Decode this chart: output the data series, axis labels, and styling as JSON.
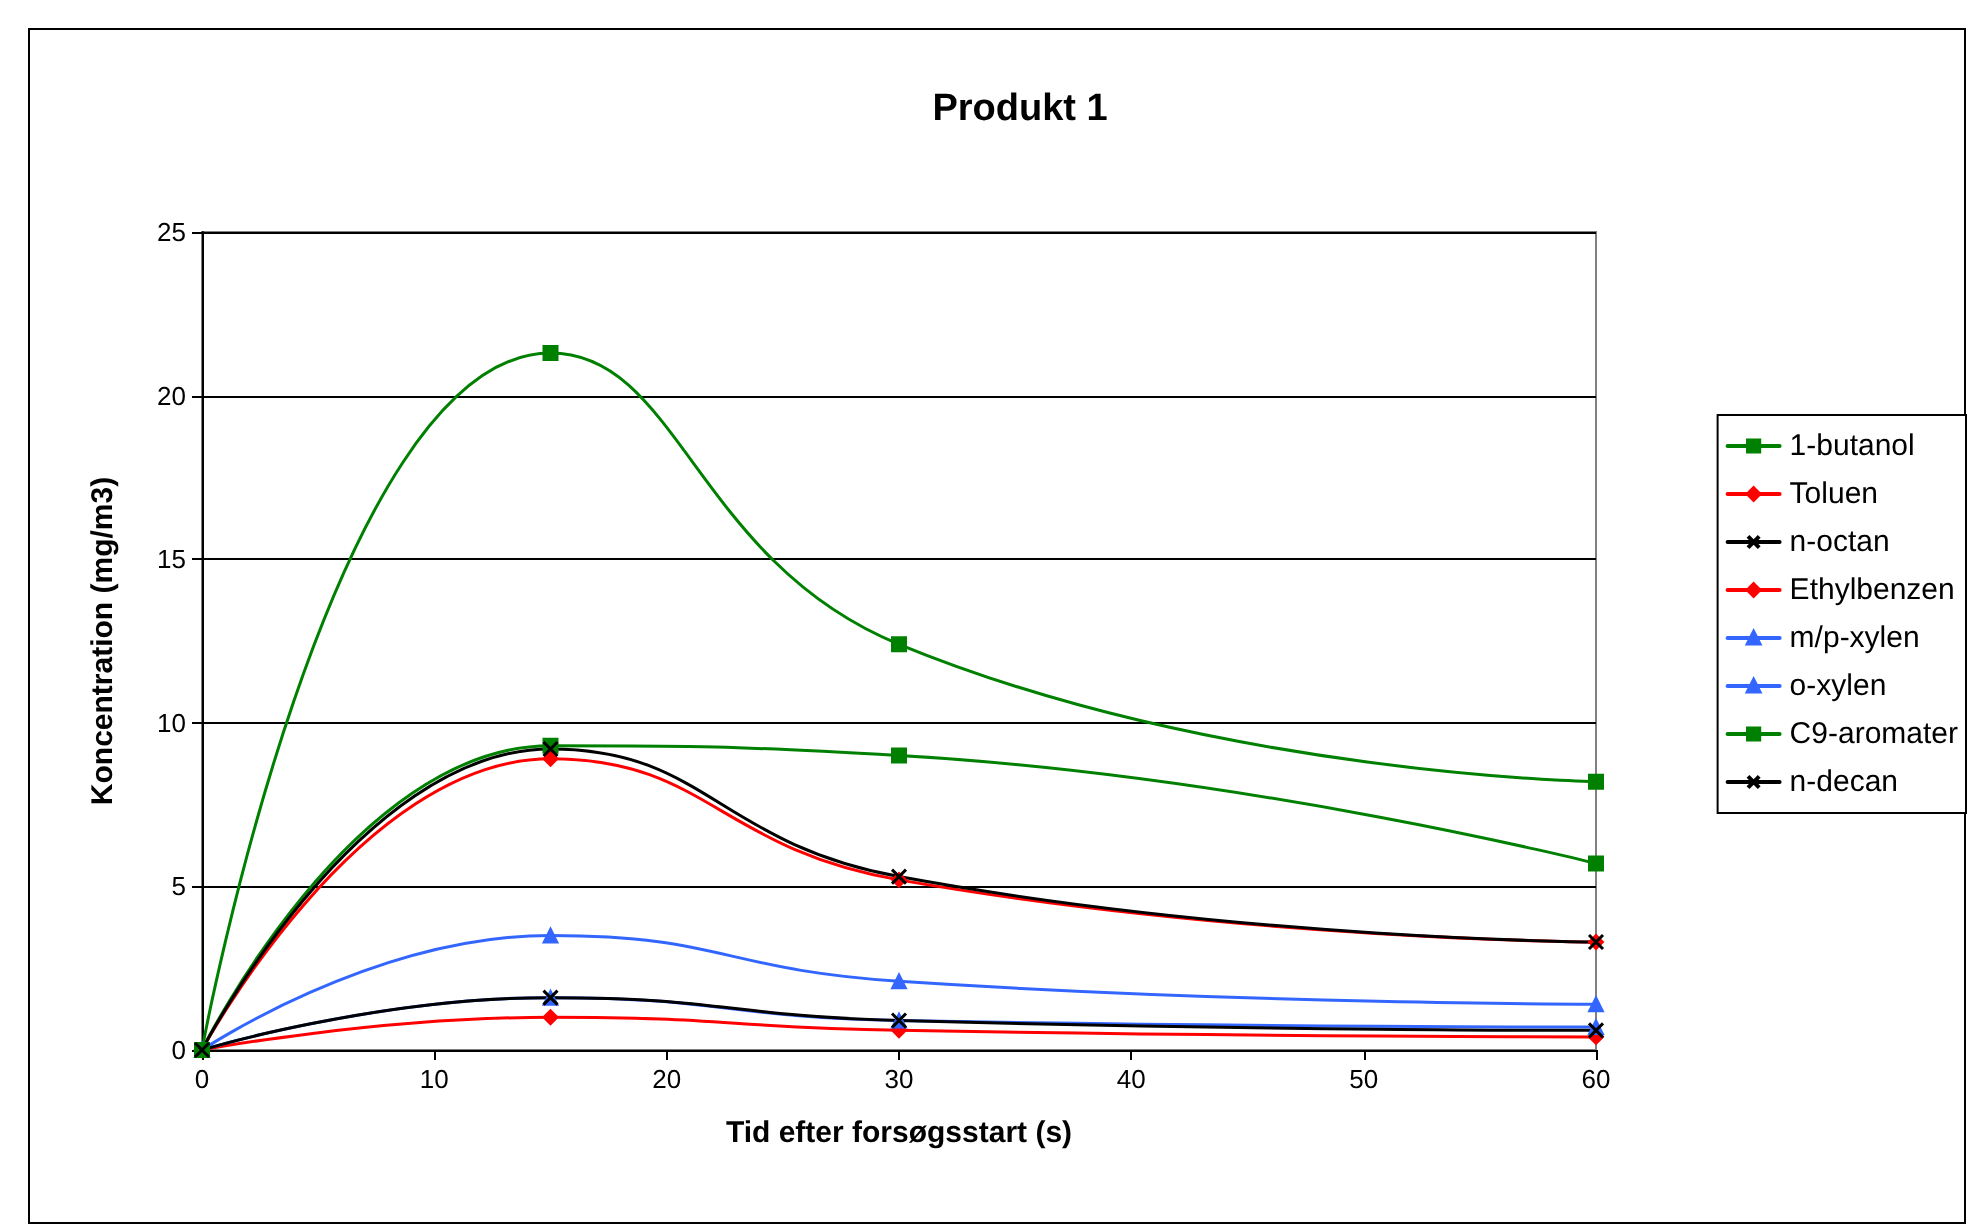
{
  "chart_data": {
    "type": "line",
    "title": "Produkt 1",
    "xlabel": "Tid efter forsøgsstart (s)",
    "ylabel": "Koncentration (mg/m3)",
    "x": [
      0,
      15,
      30,
      60
    ],
    "series": [
      {
        "name": "1-butanol",
        "color": "#008000",
        "marker": "square",
        "values": [
          0,
          9.3,
          9.0,
          5.7
        ]
      },
      {
        "name": "Toluen",
        "color": "#ff0000",
        "marker": "diamond",
        "values": [
          0,
          8.9,
          5.2,
          3.3
        ]
      },
      {
        "name": "n-octan",
        "color": "#000000",
        "marker": "cross",
        "values": [
          0,
          9.2,
          5.3,
          3.3
        ]
      },
      {
        "name": "Ethylbenzen",
        "color": "#ff0000",
        "marker": "diamond",
        "values": [
          0,
          1.0,
          0.6,
          0.4
        ]
      },
      {
        "name": "m/p-xylen",
        "color": "#3366ff",
        "marker": "triangle",
        "values": [
          0,
          3.5,
          2.1,
          1.4
        ]
      },
      {
        "name": "o-xylen",
        "color": "#3366ff",
        "marker": "triangle",
        "values": [
          0,
          1.6,
          0.9,
          0.7
        ]
      },
      {
        "name": "C9-aromater",
        "color": "#008000",
        "marker": "square",
        "values": [
          0,
          21.3,
          12.4,
          8.2
        ]
      },
      {
        "name": "n-decan",
        "color": "#000000",
        "marker": "cross",
        "values": [
          0,
          1.6,
          0.9,
          0.6
        ]
      }
    ],
    "xlim": [
      0,
      60
    ],
    "xticks": [
      0,
      10,
      20,
      30,
      40,
      50,
      60
    ],
    "ylim": [
      0,
      25
    ],
    "yticks": [
      0,
      5,
      10,
      15,
      20,
      25
    ],
    "grid": "y",
    "legend": "right",
    "line_style": "solid"
  }
}
